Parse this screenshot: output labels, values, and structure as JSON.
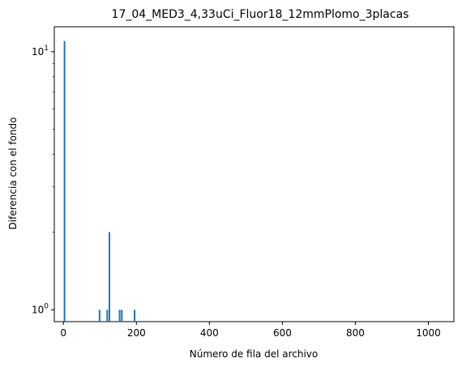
{
  "chart_data": {
    "type": "bar",
    "title": "17_04_MED3_4,33uCi_Fluor18_12mmPlomo_3placas",
    "xlabel": "Número de fila del archivo",
    "ylabel": "Diferencia con el fondo",
    "xlim": [
      -25,
      1070
    ],
    "ylim": [
      0.9,
      12.5
    ],
    "yscale": "log",
    "grid": false,
    "x_ticks": [
      {
        "value": 0,
        "label": "0"
      },
      {
        "value": 200,
        "label": "200"
      },
      {
        "value": 400,
        "label": "400"
      },
      {
        "value": 600,
        "label": "600"
      },
      {
        "value": 800,
        "label": "800"
      },
      {
        "value": 1000,
        "label": "1000"
      }
    ],
    "y_major_ticks": [
      {
        "value": 1,
        "base": "10",
        "exp": "0"
      },
      {
        "value": 10,
        "base": "10",
        "exp": "1"
      }
    ],
    "y_minor_ticks": [
      2,
      3,
      4,
      5,
      6,
      7,
      8,
      9
    ],
    "series": [
      {
        "color": "#1f77b4",
        "points": [
          {
            "x": 3,
            "y": 11
          },
          {
            "x": 99,
            "y": 1
          },
          {
            "x": 120,
            "y": 1
          },
          {
            "x": 126,
            "y": 2
          },
          {
            "x": 154,
            "y": 1
          },
          {
            "x": 160,
            "y": 1
          },
          {
            "x": 195,
            "y": 1
          }
        ]
      }
    ]
  }
}
